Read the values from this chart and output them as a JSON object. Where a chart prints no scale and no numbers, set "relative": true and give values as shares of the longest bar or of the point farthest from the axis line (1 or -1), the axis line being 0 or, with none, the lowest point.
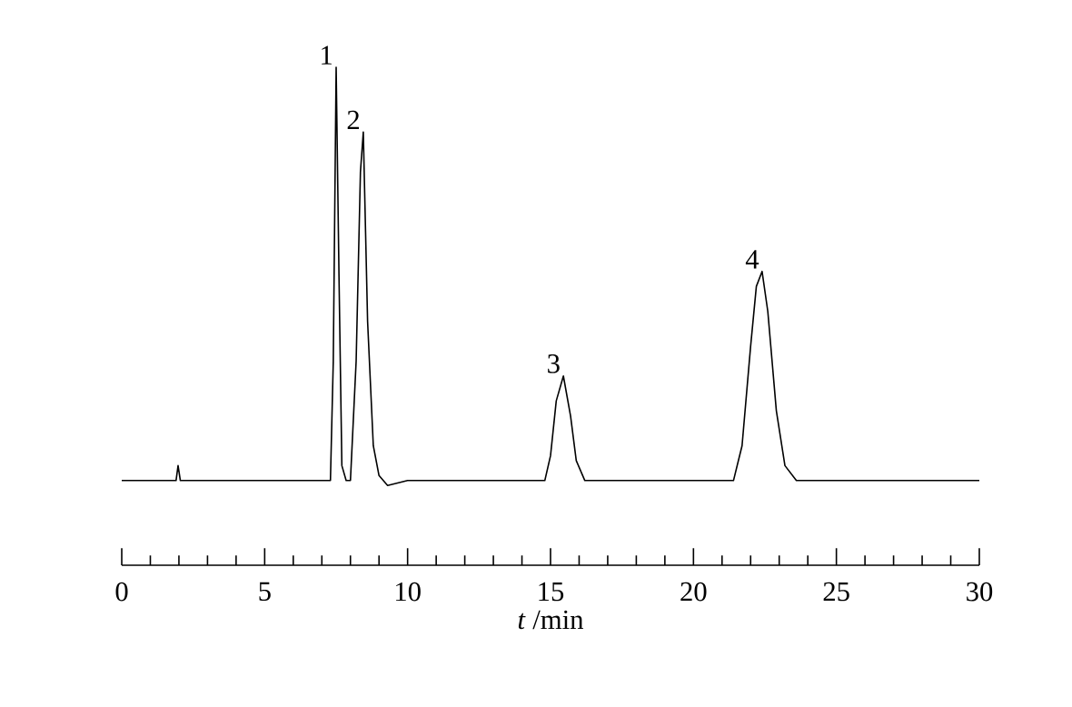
{
  "chart_data": {
    "type": "line",
    "relative": true,
    "xlabel": "*t* /min",
    "xlim": [
      0,
      30
    ],
    "xticks": [
      0,
      5,
      10,
      15,
      20,
      25,
      30
    ],
    "grid": false,
    "marker": "none",
    "line_style": "solid",
    "annotations": [
      {
        "text": "1",
        "x": 7.5,
        "y": 1.0
      },
      {
        "text": "2",
        "x": 8.45,
        "y": 0.87
      },
      {
        "text": "3",
        "x": 15.45,
        "y": 0.38
      },
      {
        "text": "4",
        "x": 22.4,
        "y": 0.59
      }
    ],
    "series": [
      {
        "color": "#000000",
        "x": [
          0,
          1.0,
          1.9,
          1.97,
          2.05,
          3,
          5,
          7.0,
          7.3,
          7.4,
          7.5,
          7.6,
          7.7,
          7.85,
          8.0,
          8.2,
          8.35,
          8.45,
          8.6,
          8.8,
          9.0,
          9.3,
          10,
          12,
          14.8,
          15.0,
          15.2,
          15.45,
          15.7,
          15.9,
          16.2,
          16.5,
          18,
          21.4,
          21.7,
          22.0,
          22.2,
          22.4,
          22.6,
          22.9,
          23.2,
          23.6,
          25,
          27,
          30
        ],
        "values": [
          0.17,
          0.17,
          0.17,
          0.2,
          0.17,
          0.17,
          0.17,
          0.17,
          0.17,
          0.41,
          1.0,
          0.58,
          0.2,
          0.17,
          0.17,
          0.41,
          0.79,
          0.87,
          0.49,
          0.24,
          0.18,
          0.16,
          0.17,
          0.17,
          0.17,
          0.22,
          0.33,
          0.38,
          0.3,
          0.21,
          0.17,
          0.17,
          0.17,
          0.17,
          0.24,
          0.44,
          0.56,
          0.59,
          0.51,
          0.31,
          0.2,
          0.17,
          0.17,
          0.17,
          0.17
        ]
      }
    ]
  }
}
